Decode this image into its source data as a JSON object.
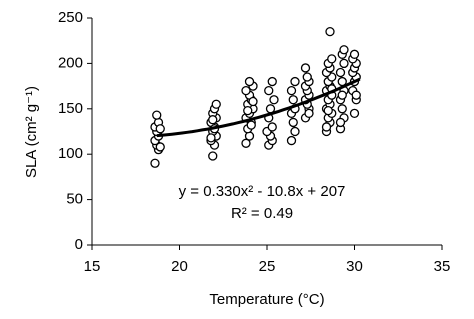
{
  "chart_data": {
    "type": "scatter",
    "x_label": "Temperature (°C)",
    "y_label": "SLA (cm² g⁻¹)",
    "annotations": [
      "y = 0.330x² - 10.8x + 207",
      "R² = 0.49"
    ],
    "x": [
      18.6,
      18.8,
      18.7,
      18.6,
      18.8,
      18.7,
      18.6,
      18.8,
      18.7,
      18.9,
      18.9,
      21.9,
      22.0,
      21.8,
      22.1,
      21.9,
      22.0,
      21.8,
      22.1,
      21.9,
      22.0,
      22.1,
      21.8,
      22.0,
      21.9,
      23.8,
      24.0,
      23.9,
      24.1,
      23.8,
      24.0,
      24.2,
      23.9,
      24.1,
      24.0,
      23.8,
      24.2,
      24.0,
      24.1,
      23.9,
      24.2,
      25.1,
      25.3,
      25.2,
      25.0,
      25.3,
      25.1,
      25.2,
      25.4,
      25.1,
      25.3,
      26.4,
      26.6,
      26.5,
      26.4,
      26.6,
      26.5,
      26.4,
      26.6,
      27.2,
      27.4,
      27.3,
      27.2,
      27.4,
      27.3,
      27.2,
      27.4,
      27.3,
      27.2,
      27.4,
      28.4,
      28.6,
      28.5,
      28.7,
      28.4,
      28.6,
      28.5,
      28.7,
      28.4,
      28.6,
      28.5,
      28.7,
      28.4,
      28.6,
      28.5,
      28.7,
      28.6,
      28.4,
      28.5,
      28.7,
      29.2,
      29.4,
      29.3,
      29.2,
      29.4,
      29.3,
      29.2,
      29.4,
      29.3,
      29.4,
      29.2,
      29.3,
      30.0,
      30.1,
      29.9,
      30.0,
      30.1,
      29.9,
      30.0,
      30.1,
      29.9,
      30.0,
      30.1
    ],
    "values": [
      90,
      105,
      110,
      115,
      120,
      125,
      130,
      135,
      143,
      108,
      128,
      98,
      110,
      115,
      120,
      125,
      130,
      135,
      140,
      145,
      150,
      155,
      118,
      128,
      138,
      112,
      120,
      128,
      135,
      140,
      145,
      150,
      155,
      160,
      165,
      170,
      175,
      180,
      132,
      148,
      158,
      110,
      115,
      120,
      125,
      130,
      140,
      150,
      160,
      170,
      180,
      115,
      125,
      135,
      145,
      150,
      160,
      170,
      180,
      140,
      150,
      155,
      160,
      165,
      170,
      175,
      180,
      185,
      195,
      145,
      125,
      135,
      140,
      145,
      150,
      155,
      160,
      165,
      170,
      175,
      180,
      185,
      190,
      195,
      200,
      205,
      235,
      130,
      148,
      172,
      128,
      140,
      150,
      160,
      170,
      180,
      190,
      200,
      210,
      215,
      135,
      165,
      145,
      160,
      170,
      180,
      185,
      190,
      195,
      200,
      205,
      210,
      165
    ],
    "marker_fill": "#ffffff",
    "color": "#000000",
    "trendline": {
      "coefficients": [
        0.33,
        -10.8,
        207
      ],
      "x_range": [
        18.7,
        30.3
      ]
    },
    "xlim": [
      15,
      35
    ],
    "xticks": [
      15,
      20,
      25,
      30,
      35
    ],
    "ylim": [
      0,
      250
    ],
    "yticks": [
      0,
      50,
      100,
      150,
      200,
      250
    ]
  }
}
